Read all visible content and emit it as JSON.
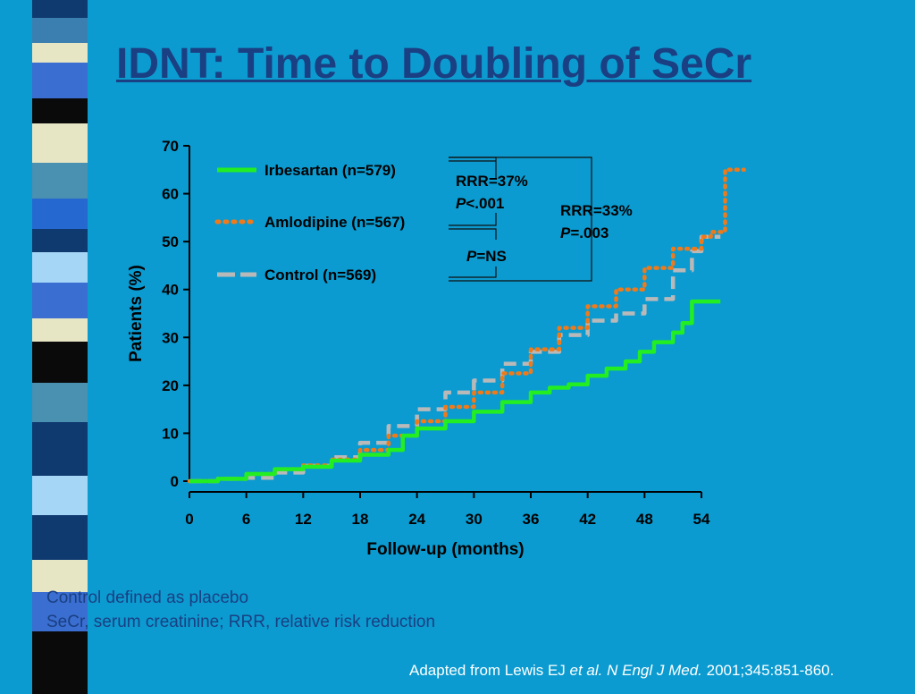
{
  "slide": {
    "title": "IDNT: Time to Doubling of SeCr",
    "footnotes": [
      "Control defined as placebo",
      "SeCr, serum creatinine; RRR, relative risk reduction"
    ],
    "citation": {
      "lead": "Adapted from Lewis EJ ",
      "etal": "et al.",
      "journal": "N Engl J Med.",
      "tail": " 2001;345:851-860."
    }
  },
  "colors": {
    "background": "#0b9bd0",
    "title": "#1a3f82",
    "irbesartan": "#22ee22",
    "amlodipine": "#f07a1a",
    "control": "#b9b9b9"
  },
  "chart_data": {
    "type": "line",
    "xlabel": "Follow-up (months)",
    "ylabel": "Patients (%)",
    "xlim": [
      0,
      54
    ],
    "ylim": [
      0,
      70
    ],
    "xticks": [
      0,
      6,
      12,
      18,
      24,
      30,
      36,
      42,
      48,
      54
    ],
    "yticks": [
      0,
      10,
      20,
      30,
      40,
      50,
      60,
      70
    ],
    "legend_placement": "top-left",
    "grid": false,
    "series": [
      {
        "name": "Irbesartan (n=579)",
        "style": "solid",
        "x": [
          0,
          3,
          6,
          9,
          12,
          15,
          18,
          21,
          22.5,
          24,
          27,
          30,
          33,
          36,
          38,
          40,
          42,
          44,
          46,
          47.5,
          49,
          51,
          52,
          53,
          54,
          56
        ],
        "y": [
          0,
          0.5,
          1.5,
          2.5,
          3.0,
          4.3,
          5.5,
          6.5,
          9.5,
          11,
          12.5,
          14.5,
          16.5,
          18.5,
          19.5,
          20.2,
          22,
          23.5,
          25,
          27,
          29,
          31,
          33,
          37.5,
          37.5,
          37.5
        ]
      },
      {
        "name": "Amlodipine (n=567)",
        "style": "dotted",
        "x": [
          0,
          3,
          6,
          9,
          12,
          15,
          18,
          21,
          24,
          27,
          30,
          33,
          36,
          39,
          42,
          45,
          48,
          51,
          54,
          55,
          56.5,
          58.5
        ],
        "y": [
          0,
          0.5,
          1.5,
          2.5,
          3.3,
          4.5,
          6.5,
          9.5,
          12.5,
          15.5,
          18.5,
          22.5,
          27.5,
          32,
          36.5,
          40,
          44.5,
          48.5,
          51,
          52,
          65,
          65
        ]
      },
      {
        "name": "Control (n=569)",
        "style": "dashed",
        "x": [
          0,
          3,
          6,
          9,
          12,
          15,
          18,
          21,
          24,
          27,
          30,
          33,
          36,
          39,
          42,
          45,
          48,
          51,
          53,
          54,
          56
        ],
        "y": [
          0,
          0.5,
          0.7,
          1.8,
          3.2,
          5,
          8,
          11.5,
          15,
          18.5,
          21,
          24.5,
          27,
          30.5,
          33.5,
          35,
          38,
          44,
          48,
          51,
          51
        ]
      }
    ],
    "annotations": [
      {
        "line1": "RRR=37%",
        "p_symbol": "P",
        "p_value": "<.001"
      },
      {
        "line1": "RRR=33%",
        "p_symbol": "P",
        "p_value": "=.003"
      },
      {
        "line1": "",
        "p_symbol": "P",
        "p_value": "=NS"
      }
    ]
  }
}
